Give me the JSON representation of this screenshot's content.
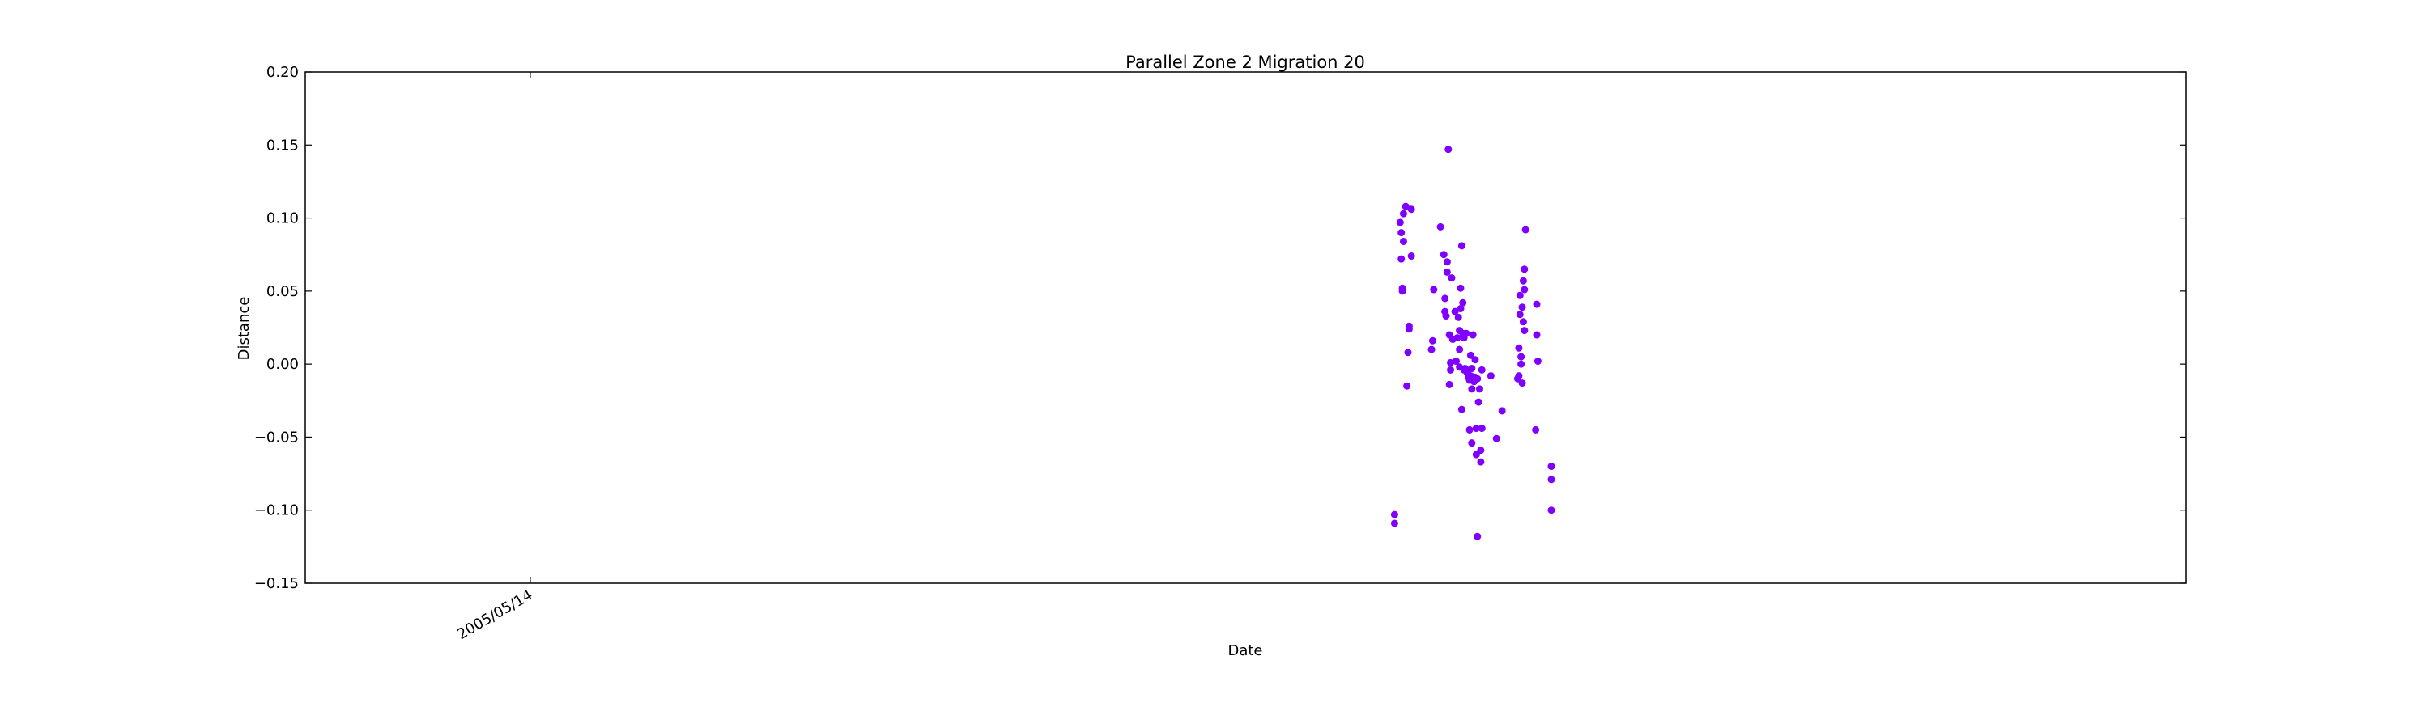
{
  "chart_data": {
    "type": "scatter",
    "title": "Parallel Zone 2 Migration 20",
    "xlabel": "Date",
    "ylabel": "Distance",
    "ylim": [
      -0.15,
      0.2
    ],
    "yticks": [
      "−0.15",
      "−0.10",
      "−0.05",
      "0.00",
      "0.05",
      "0.10",
      "0.15",
      "0.20"
    ],
    "ytick_values": [
      -0.15,
      -0.1,
      -0.05,
      0.0,
      0.05,
      0.1,
      0.15,
      0.2
    ],
    "xlim": [
      "2004/10/25",
      "2009/06/01"
    ],
    "xticks": [
      "2005/05/14"
    ],
    "xtick_values": [
      "2005/05/14"
    ],
    "grid": false,
    "marker_color": "#7f00ff",
    "series": [
      {
        "points": [
          [
            "2007/06/25",
            -0.103
          ],
          [
            "2007/06/25",
            -0.109
          ],
          [
            "2007/06/30",
            0.097
          ],
          [
            "2007/07/01",
            0.09
          ],
          [
            "2007/07/01",
            0.072
          ],
          [
            "2007/07/02",
            0.05
          ],
          [
            "2007/07/02",
            0.052
          ],
          [
            "2007/07/03",
            0.084
          ],
          [
            "2007/07/03",
            0.103
          ],
          [
            "2007/07/05",
            0.108
          ],
          [
            "2007/07/06",
            -0.015
          ],
          [
            "2007/07/07",
            0.008
          ],
          [
            "2007/07/08",
            0.024
          ],
          [
            "2007/07/08",
            0.026
          ],
          [
            "2007/07/10",
            0.106
          ],
          [
            "2007/07/10",
            0.074
          ],
          [
            "2007/07/28",
            0.01
          ],
          [
            "2007/07/29",
            0.016
          ],
          [
            "2007/07/30",
            0.051
          ],
          [
            "2007/08/05",
            0.094
          ],
          [
            "2007/08/08",
            0.075
          ],
          [
            "2007/08/09",
            0.045
          ],
          [
            "2007/08/09",
            0.036
          ],
          [
            "2007/08/10",
            0.033
          ],
          [
            "2007/08/11",
            0.07
          ],
          [
            "2007/08/11",
            0.063
          ],
          [
            "2007/08/12",
            0.147
          ],
          [
            "2007/08/13",
            0.02
          ],
          [
            "2007/08/13",
            -0.014
          ],
          [
            "2007/08/14",
            0.001
          ],
          [
            "2007/08/14",
            -0.004
          ],
          [
            "2007/08/15",
            0.059
          ],
          [
            "2007/08/16",
            0.017
          ],
          [
            "2007/08/18",
            0.036
          ],
          [
            "2007/08/19",
            0.002
          ],
          [
            "2007/08/20",
            0.018
          ],
          [
            "2007/08/21",
            0.032
          ],
          [
            "2007/08/22",
            0.023
          ],
          [
            "2007/08/22",
            0.01
          ],
          [
            "2007/08/22",
            -0.002
          ],
          [
            "2007/08/23",
            0.052
          ],
          [
            "2007/08/23",
            0.038
          ],
          [
            "2007/08/24",
            0.081
          ],
          [
            "2007/08/24",
            -0.031
          ],
          [
            "2007/08/25",
            0.021
          ],
          [
            "2007/08/25",
            0.042
          ],
          [
            "2007/08/26",
            0.018
          ],
          [
            "2007/08/26",
            -0.004
          ],
          [
            "2007/08/27",
            -0.003
          ],
          [
            "2007/08/28",
            0.021
          ],
          [
            "2007/08/29",
            -0.006
          ],
          [
            "2007/08/30",
            -0.009
          ],
          [
            "2007/08/31",
            -0.045
          ],
          [
            "2007/08/31",
            -0.011
          ],
          [
            "2007/09/01",
            0.006
          ],
          [
            "2007/09/01",
            -0.008
          ],
          [
            "2007/09/02",
            -0.054
          ],
          [
            "2007/09/02",
            -0.017
          ],
          [
            "2007/09/02",
            -0.003
          ],
          [
            "2007/09/03",
            0.02
          ],
          [
            "2007/09/04",
            -0.012
          ],
          [
            "2007/09/05",
            0.003
          ],
          [
            "2007/09/05",
            -0.009
          ],
          [
            "2007/09/06",
            -0.044
          ],
          [
            "2007/09/06",
            -0.062
          ],
          [
            "2007/09/07",
            -0.118
          ],
          [
            "2007/09/07",
            -0.01
          ],
          [
            "2007/09/08",
            -0.026
          ],
          [
            "2007/09/09",
            -0.017
          ],
          [
            "2007/09/10",
            -0.059
          ],
          [
            "2007/09/10",
            -0.067
          ],
          [
            "2007/09/11",
            -0.044
          ],
          [
            "2007/09/11",
            -0.004
          ],
          [
            "2007/09/19",
            -0.008
          ],
          [
            "2007/09/24",
            -0.051
          ],
          [
            "2007/09/29",
            -0.032
          ],
          [
            "2007/10/13",
            -0.01
          ],
          [
            "2007/10/14",
            -0.008
          ],
          [
            "2007/10/14",
            0.011
          ],
          [
            "2007/10/15",
            0.047
          ],
          [
            "2007/10/15",
            0.034
          ],
          [
            "2007/10/16",
            0.005
          ],
          [
            "2007/10/16",
            0.0
          ],
          [
            "2007/10/17",
            0.039
          ],
          [
            "2007/10/17",
            -0.013
          ],
          [
            "2007/10/18",
            0.057
          ],
          [
            "2007/10/18",
            0.029
          ],
          [
            "2007/10/19",
            0.065
          ],
          [
            "2007/10/19",
            0.051
          ],
          [
            "2007/10/19",
            0.023
          ],
          [
            "2007/10/20",
            0.092
          ],
          [
            "2007/10/29",
            -0.045
          ],
          [
            "2007/10/30",
            0.041
          ],
          [
            "2007/10/30",
            0.02
          ],
          [
            "2007/10/31",
            0.002
          ],
          [
            "2007/11/12",
            -0.07
          ],
          [
            "2007/11/12",
            -0.079
          ],
          [
            "2007/11/12",
            -0.1
          ]
        ]
      }
    ]
  }
}
